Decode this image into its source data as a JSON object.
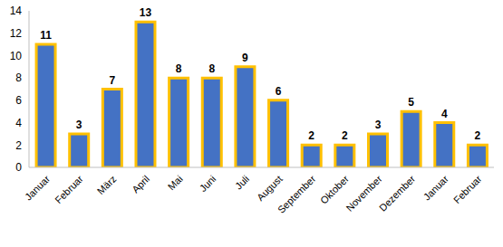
{
  "chart_data": {
    "type": "bar",
    "categories": [
      "Januar",
      "Februar",
      "März",
      "April",
      "Mai",
      "Juni",
      "Juli",
      "August",
      "September",
      "Oktober",
      "November",
      "Dezember",
      "Januar",
      "Februar"
    ],
    "values": [
      11,
      3,
      7,
      13,
      8,
      8,
      9,
      6,
      2,
      2,
      3,
      5,
      4,
      2
    ],
    "color": "#4472C4",
    "ylim": [
      0,
      14
    ],
    "yticks": [
      0,
      2,
      4,
      6,
      8,
      10,
      12,
      14
    ],
    "grid": false,
    "data_labels": true
  }
}
